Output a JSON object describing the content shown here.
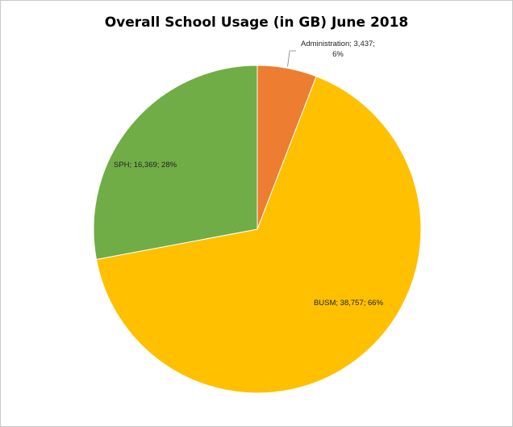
{
  "chart_data": {
    "type": "pie",
    "title": "Overall School Usage (in GB) June 2018",
    "slices": [
      {
        "name": "Administration",
        "value": 3437,
        "label_lines": [
          "Administration; 3,437;",
          "6%"
        ],
        "color": "#ED7D31"
      },
      {
        "name": "BUSM",
        "value": 38757,
        "label_lines": [
          "BUSM; 38,757; 66%"
        ],
        "color": "#FFC000"
      },
      {
        "name": "SPH",
        "value": 16369,
        "label_lines": [
          "SPH; 16,369; 28%"
        ],
        "color": "#70AD47"
      }
    ],
    "start_angle_deg": 0,
    "direction": "clockwise",
    "legend": "none"
  }
}
